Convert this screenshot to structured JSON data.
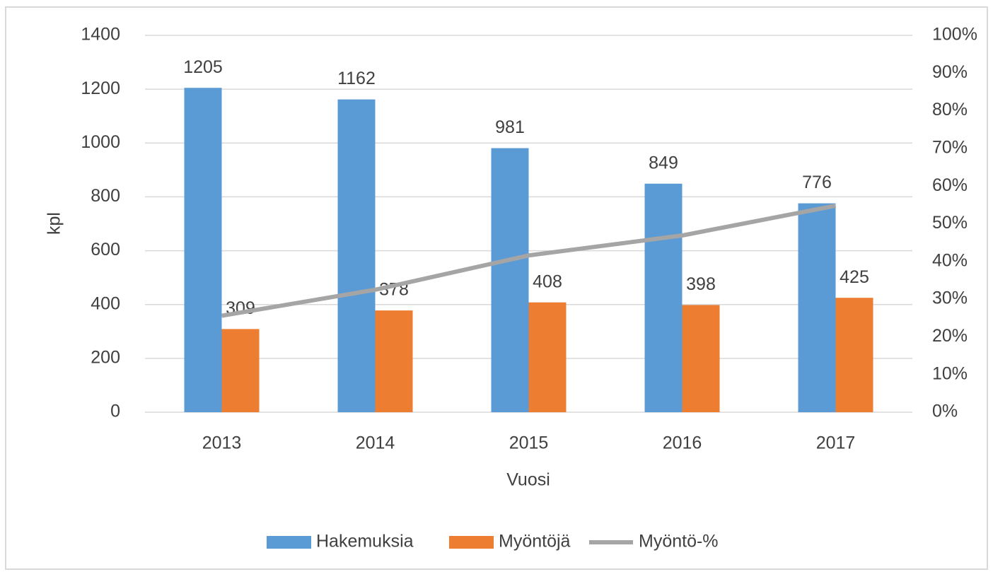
{
  "chart_data": {
    "type": "bar",
    "categories": [
      "2013",
      "2014",
      "2015",
      "2016",
      "2017"
    ],
    "series": [
      {
        "name": "Hakemuksia",
        "color": "#5b9bd5",
        "values": [
          1205,
          1162,
          981,
          849,
          776
        ]
      },
      {
        "name": "Myöntöjä",
        "color": "#ed7d31",
        "values": [
          309,
          378,
          408,
          398,
          425
        ]
      },
      {
        "name": "Myöntö-%",
        "color": "#a5a5a5",
        "type": "line",
        "axis": "y2",
        "values": [
          25.6,
          32.5,
          41.6,
          46.9,
          54.8
        ]
      }
    ],
    "y_label": "kpl",
    "x_label": "Vuosi",
    "ylim": [
      0,
      1400
    ],
    "yticks": [
      0,
      200,
      400,
      600,
      800,
      1000,
      1200,
      1400
    ],
    "y2lim": [
      0,
      100
    ],
    "y2ticks": [
      {
        "value": 0,
        "label": "0%"
      },
      {
        "value": 10,
        "label": "10%"
      },
      {
        "value": 20,
        "label": "20%"
      },
      {
        "value": 30,
        "label": "30%"
      },
      {
        "value": 40,
        "label": "40%"
      },
      {
        "value": 50,
        "label": "50%"
      },
      {
        "value": 60,
        "label": "60%"
      },
      {
        "value": 70,
        "label": "70%"
      },
      {
        "value": 80,
        "label": "80%"
      },
      {
        "value": 90,
        "label": "90%"
      },
      {
        "value": 100,
        "label": "100%"
      }
    ],
    "grid": true,
    "legend": "bottom"
  }
}
